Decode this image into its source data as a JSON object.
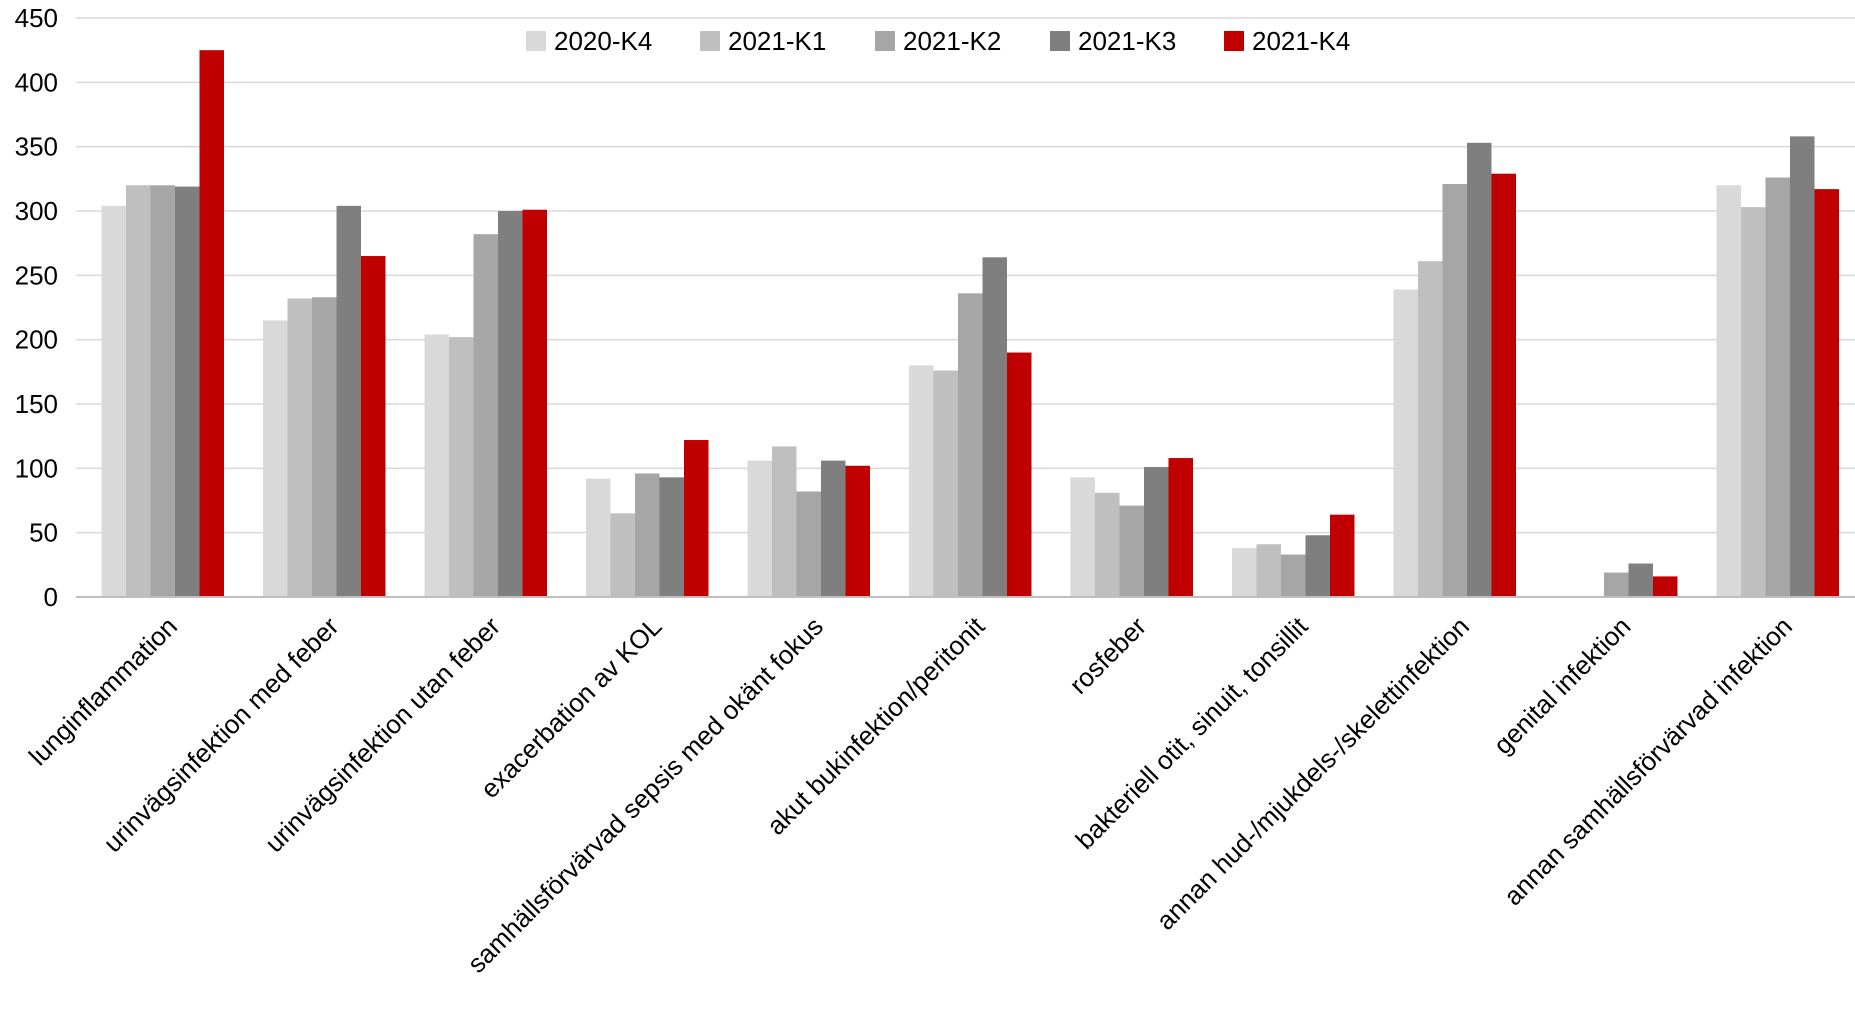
{
  "chart_data": {
    "type": "bar",
    "categories": [
      "lunginflammation",
      "urinvägsinfektion med feber",
      "urinvägsinfektion utan feber",
      "exacerbation av KOL",
      "samhällsförvärvad sepsis med okänt fokus",
      "akut bukinfektion/peritonit",
      "rosfeber",
      "bakteriell otit, sinuit, tonsillit",
      "annan hud-/mjukdels-/skelettinfektion",
      "genital infektion",
      "annan samhällsförvärvad infektion"
    ],
    "series": [
      {
        "name": "2020-K4",
        "color": "#d9d9d9",
        "values": [
          304,
          215,
          204,
          92,
          106,
          180,
          93,
          38,
          239,
          null,
          320
        ]
      },
      {
        "name": "2021-K1",
        "color": "#bfbfbf",
        "values": [
          320,
          232,
          202,
          65,
          117,
          176,
          81,
          41,
          261,
          null,
          303
        ]
      },
      {
        "name": "2021-K2",
        "color": "#a6a6a6",
        "values": [
          320,
          233,
          282,
          96,
          82,
          236,
          71,
          33,
          321,
          19,
          326
        ]
      },
      {
        "name": "2021-K3",
        "color": "#7f7f7f",
        "values": [
          319,
          304,
          300,
          93,
          106,
          264,
          101,
          48,
          353,
          26,
          358
        ]
      },
      {
        "name": "2021-K4",
        "color": "#c00000",
        "values": [
          425,
          265,
          301,
          122,
          102,
          190,
          108,
          64,
          329,
          16,
          317
        ]
      }
    ],
    "yticks": [
      "0",
      "50",
      "100",
      "150",
      "200",
      "250",
      "300",
      "350",
      "400",
      "450"
    ],
    "ylim": [
      0,
      450
    ],
    "grid": true,
    "gridline_color": "#d9d9d9",
    "legend_position": "top-center"
  }
}
